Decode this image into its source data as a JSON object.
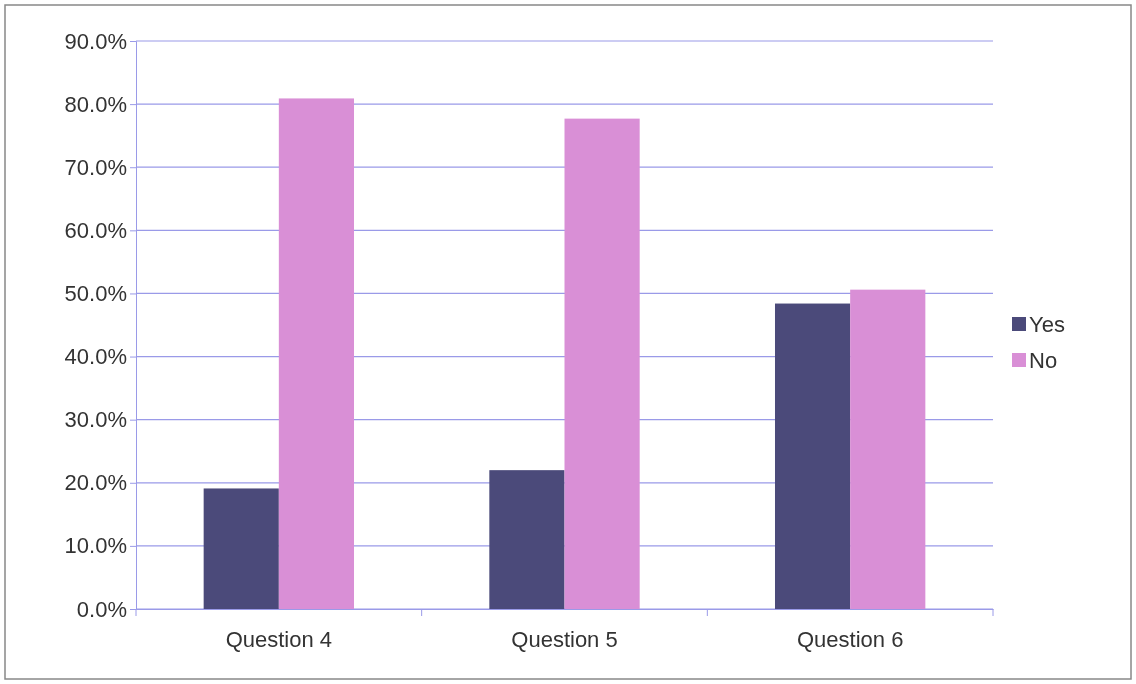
{
  "chart_data": {
    "type": "bar",
    "categories": [
      "Question 4",
      "Question 5",
      "Question 6"
    ],
    "series": [
      {
        "name": "Yes",
        "color": "#4b4a7a",
        "values": [
          19.1,
          22.0,
          48.4
        ]
      },
      {
        "name": "No",
        "color": "#d98fd6",
        "values": [
          80.9,
          77.7,
          50.6
        ]
      }
    ],
    "ylim": [
      0,
      90
    ],
    "yticks": [
      {
        "value": 0,
        "label": "0.0%"
      },
      {
        "value": 10,
        "label": "10.0%"
      },
      {
        "value": 20,
        "label": "20.0%"
      },
      {
        "value": 30,
        "label": "30.0%"
      },
      {
        "value": 40,
        "label": "40.0%"
      },
      {
        "value": 50,
        "label": "50.0%"
      },
      {
        "value": 60,
        "label": "60.0%"
      },
      {
        "value": 70,
        "label": "70.0%"
      },
      {
        "value": 80,
        "label": "80.0%"
      },
      {
        "value": 90,
        "label": "90.0%"
      }
    ],
    "grid": "y",
    "legend": "right"
  }
}
